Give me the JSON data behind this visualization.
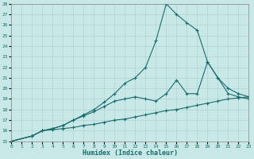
{
  "xlabel": "Humidex (Indice chaleur)",
  "background_color": "#c8e8e8",
  "line_color": "#1a6b6b",
  "xlim": [
    0,
    23
  ],
  "ylim": [
    15,
    28
  ],
  "xticks": [
    0,
    1,
    2,
    3,
    4,
    5,
    6,
    7,
    8,
    9,
    10,
    11,
    12,
    13,
    14,
    15,
    16,
    17,
    18,
    19,
    20,
    21,
    22,
    23
  ],
  "yticks": [
    15,
    16,
    17,
    18,
    19,
    20,
    21,
    22,
    23,
    24,
    25,
    26,
    27,
    28
  ],
  "line1_x": [
    0,
    2,
    3,
    4,
    5,
    6,
    7,
    8,
    9,
    10,
    11,
    12,
    13,
    14,
    15,
    16,
    17,
    18,
    19,
    20,
    21,
    22,
    23
  ],
  "line1_y": [
    15,
    15.5,
    16.0,
    16.1,
    16.2,
    16.3,
    16.5,
    16.6,
    16.8,
    17.0,
    17.1,
    17.3,
    17.5,
    17.7,
    17.9,
    18.0,
    18.2,
    18.4,
    18.6,
    18.8,
    19.0,
    19.1,
    19.2
  ],
  "line2_x": [
    0,
    2,
    3,
    4,
    5,
    6,
    7,
    8,
    9,
    10,
    11,
    12,
    13,
    14,
    15,
    16,
    17,
    18,
    19,
    20,
    21,
    22,
    23
  ],
  "line2_y": [
    15,
    15.5,
    16.0,
    16.2,
    16.5,
    17.0,
    17.4,
    17.8,
    18.3,
    18.8,
    19.0,
    19.2,
    19.0,
    18.8,
    19.5,
    20.8,
    19.5,
    19.5,
    22.5,
    21.0,
    20.0,
    19.5,
    19.2
  ],
  "line3_x": [
    0,
    2,
    3,
    4,
    5,
    6,
    7,
    8,
    9,
    10,
    11,
    12,
    13,
    14,
    15,
    16,
    17,
    18,
    19,
    20,
    21,
    22,
    23
  ],
  "line3_y": [
    15,
    15.5,
    16.0,
    16.2,
    16.5,
    17.0,
    17.5,
    18.0,
    18.7,
    19.5,
    20.5,
    21.0,
    22.0,
    24.5,
    28.0,
    27.0,
    26.2,
    25.5,
    22.5,
    21.0,
    19.5,
    19.2,
    19.0
  ],
  "line1_markers_x": [
    0,
    2,
    3,
    4,
    5,
    6,
    7,
    8,
    9,
    10,
    11,
    12,
    13,
    14,
    15,
    16,
    17,
    18,
    19,
    20,
    21,
    22,
    23
  ],
  "line2_markers_x": [
    3,
    5,
    7,
    9,
    10,
    11,
    12,
    13,
    14,
    15,
    16,
    17,
    18,
    19,
    20,
    21,
    22,
    23
  ],
  "line3_markers_x": [
    3,
    5,
    7,
    9,
    10,
    11,
    12,
    13,
    14,
    15,
    16,
    17,
    18,
    19,
    20,
    21,
    22,
    23
  ]
}
